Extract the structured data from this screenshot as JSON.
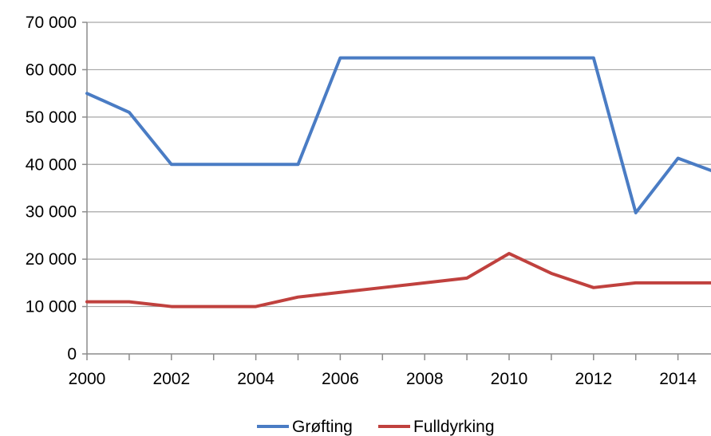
{
  "chart_data": {
    "type": "line",
    "x": [
      2000,
      2001,
      2002,
      2003,
      2004,
      2005,
      2006,
      2007,
      2008,
      2009,
      2010,
      2011,
      2012,
      2013,
      2014,
      2015
    ],
    "series": [
      {
        "name": "Grøfting",
        "color": "#4a7cc4",
        "values": [
          55000,
          51000,
          40000,
          40000,
          40000,
          40000,
          62500,
          62500,
          62500,
          62500,
          62500,
          62500,
          62500,
          29800,
          41300,
          38000
        ]
      },
      {
        "name": "Fulldyrking",
        "color": "#c0413e",
        "values": [
          11000,
          11000,
          10000,
          10000,
          10000,
          12000,
          13000,
          14000,
          15000,
          16000,
          21200,
          17000,
          14000,
          15000,
          15000,
          15000
        ]
      }
    ],
    "xticks": [
      "2000",
      "2002",
      "2004",
      "2006",
      "2008",
      "2010",
      "2012",
      "2014"
    ],
    "yticks": [
      "0",
      "10 000",
      "20 000",
      "30 000",
      "40 000",
      "50 000",
      "60 000",
      "70 000"
    ],
    "xlim": [
      2000,
      2015
    ],
    "ylim": [
      0,
      70000
    ],
    "grid": "horizontal",
    "legend_position": "bottom",
    "title": "",
    "xlabel": "",
    "ylabel": ""
  }
}
